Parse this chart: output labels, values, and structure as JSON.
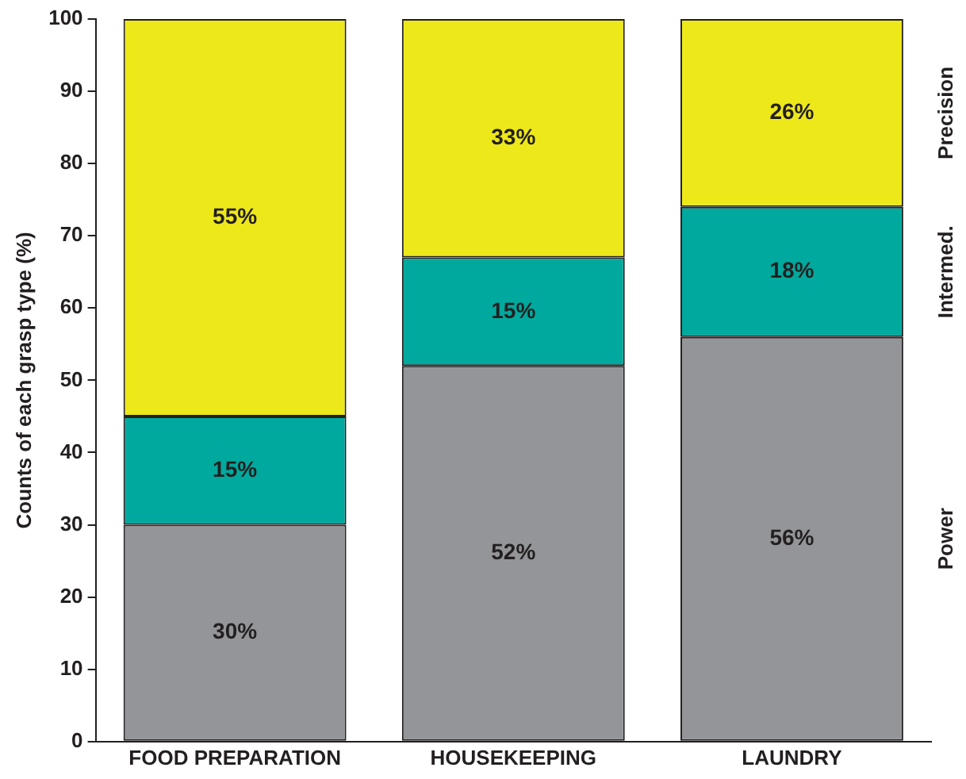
{
  "chart_data": {
    "type": "bar",
    "stacked": true,
    "ylabel": "Counts of each grasp type (%)",
    "categories": [
      "FOOD PREPARATION",
      "HOUSEKEEPING",
      "LAUNDRY"
    ],
    "ylim": [
      0,
      100
    ],
    "yticks": [
      0,
      10,
      20,
      30,
      40,
      50,
      60,
      70,
      80,
      90,
      100
    ],
    "grid": false,
    "legend": false,
    "series": [
      {
        "name": "Power",
        "color": "#939598",
        "values": [
          30,
          52,
          56
        ],
        "value_labels": [
          "30%",
          "52%",
          "56%"
        ]
      },
      {
        "name": "Intermed.",
        "color": "#00a99d",
        "values": [
          15,
          15,
          18
        ],
        "value_labels": [
          "15%",
          "15%",
          "18%"
        ]
      },
      {
        "name": "Precision",
        "color": "#ede81a",
        "values": [
          55,
          33,
          26
        ],
        "value_labels": [
          "55%",
          "33%",
          "26%"
        ]
      }
    ]
  }
}
